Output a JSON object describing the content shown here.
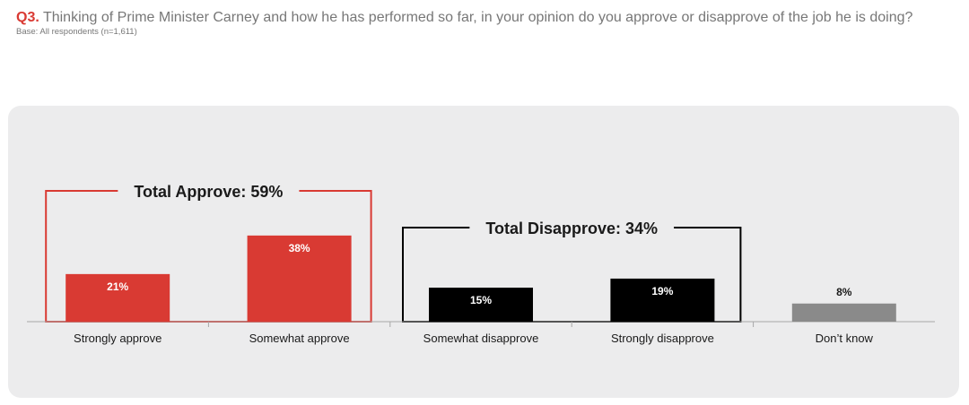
{
  "header": {
    "question_number": "Q3.",
    "question_text": "Thinking of Prime Minister Carney and how he has performed so far, in your opinion do you approve or disapprove of the job he is doing?",
    "base": "Base: All respondents (n=1,611)"
  },
  "colors": {
    "approve": "#d93a33",
    "disapprove": "#000000",
    "dont_know": "#8a8a8a"
  },
  "chart_data": {
    "type": "bar",
    "categories": [
      "Strongly approve",
      "Somewhat approve",
      "Somewhat disapprove",
      "Strongly disapprove",
      "Don’t know"
    ],
    "values": [
      21,
      38,
      15,
      19,
      8
    ],
    "value_labels": [
      "21%",
      "38%",
      "15%",
      "19%",
      "8%"
    ],
    "ylim": [
      0,
      40
    ],
    "groups": [
      {
        "label": "Total Approve: 59%",
        "categories": [
          "Strongly approve",
          "Somewhat approve"
        ],
        "color": "#d93a33"
      },
      {
        "label": "Total Disapprove: 34%",
        "categories": [
          "Somewhat disapprove",
          "Strongly disapprove"
        ],
        "color": "#000000"
      }
    ]
  }
}
